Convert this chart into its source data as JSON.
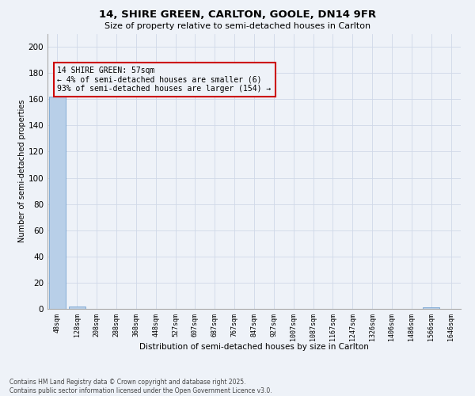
{
  "title_line1": "14, SHIRE GREEN, CARLTON, GOOLE, DN14 9FR",
  "title_line2": "Size of property relative to semi-detached houses in Carlton",
  "xlabel": "Distribution of semi-detached houses by size in Carlton",
  "ylabel": "Number of semi-detached properties",
  "footnote_line1": "Contains HM Land Registry data © Crown copyright and database right 2025.",
  "footnote_line2": "Contains public sector information licensed under the Open Government Licence v3.0.",
  "annotation_line1": "14 SHIRE GREEN: 57sqm",
  "annotation_line2": "← 4% of semi-detached houses are smaller (6)",
  "annotation_line3": "93% of semi-detached houses are larger (154) →",
  "bar_labels": [
    "48sqm",
    "128sqm",
    "208sqm",
    "288sqm",
    "368sqm",
    "448sqm",
    "527sqm",
    "607sqm",
    "687sqm",
    "767sqm",
    "847sqm",
    "927sqm",
    "1007sqm",
    "1087sqm",
    "1167sqm",
    "1247sqm",
    "1326sqm",
    "1406sqm",
    "1486sqm",
    "1566sqm",
    "1646sqm"
  ],
  "bar_values": [
    162,
    2,
    0,
    0,
    0,
    0,
    0,
    0,
    0,
    0,
    0,
    0,
    0,
    0,
    0,
    0,
    0,
    0,
    0,
    1,
    0
  ],
  "bar_color": "#b8cfe8",
  "bar_edge_color": "#6699cc",
  "ylim": [
    0,
    210
  ],
  "yticks": [
    0,
    20,
    40,
    60,
    80,
    100,
    120,
    140,
    160,
    180,
    200
  ],
  "annotation_box_color": "#cc0000",
  "grid_color": "#d0d8e8",
  "bg_color": "#eef2f8",
  "title1_fontsize": 9.5,
  "title2_fontsize": 8,
  "xlabel_fontsize": 7.5,
  "ylabel_fontsize": 7,
  "xtick_fontsize": 6,
  "ytick_fontsize": 7.5,
  "annot_fontsize": 7,
  "footnote_fontsize": 5.5
}
